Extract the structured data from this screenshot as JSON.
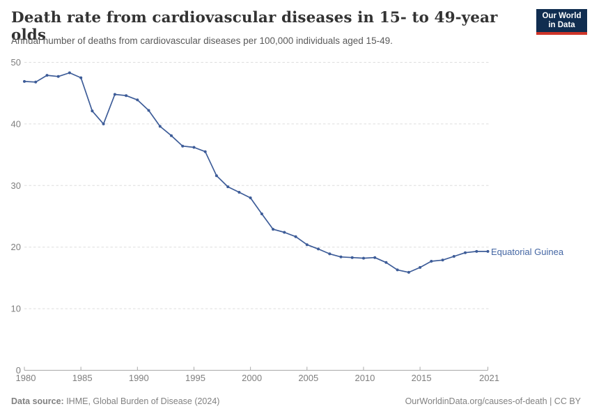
{
  "header": {
    "title": "Death rate from cardiovascular diseases in 15- to 49-year olds",
    "subtitle": "Annual number of deaths from cardiovascular diseases per 100,000 individuals aged 15-49.",
    "logo": {
      "line1": "Our World",
      "line2": "in Data"
    }
  },
  "chart_data": {
    "type": "line",
    "title": "Death rate from cardiovascular diseases in 15- to 49-year olds",
    "subtitle": "Annual number of deaths from cardiovascular diseases per 100,000 individuals aged 15-49.",
    "x": [
      1980,
      1981,
      1982,
      1983,
      1984,
      1985,
      1986,
      1987,
      1988,
      1989,
      1990,
      1991,
      1992,
      1993,
      1994,
      1995,
      1996,
      1997,
      1998,
      1999,
      2000,
      2001,
      2002,
      2003,
      2004,
      2005,
      2006,
      2007,
      2008,
      2009,
      2010,
      2011,
      2012,
      2013,
      2014,
      2015,
      2016,
      2017,
      2018,
      2019,
      2020,
      2021
    ],
    "series": [
      {
        "name": "Equatorial Guinea",
        "color": "#3d5c98",
        "values": [
          46.9,
          46.8,
          47.9,
          47.7,
          48.3,
          47.5,
          42.1,
          40.0,
          44.8,
          44.6,
          43.9,
          42.2,
          39.6,
          38.1,
          36.4,
          36.2,
          35.5,
          31.6,
          29.8,
          28.9,
          28.0,
          25.4,
          22.9,
          22.4,
          21.7,
          20.4,
          19.7,
          18.9,
          18.4,
          18.3,
          18.2,
          18.3,
          17.5,
          16.3,
          15.9,
          16.7,
          17.7,
          17.9,
          18.5,
          19.1,
          19.3,
          19.3
        ]
      }
    ],
    "xlabel": "",
    "ylabel": "",
    "ylim": [
      0,
      50
    ],
    "xlim": [
      1980,
      2021
    ],
    "yticks": [
      0,
      10,
      20,
      30,
      40,
      50
    ],
    "xticks": [
      1980,
      1985,
      1990,
      1995,
      2000,
      2005,
      2010,
      2015,
      2021
    ],
    "grid": "horizontal-dashed",
    "legend_position": "line-end-label"
  },
  "footer": {
    "source_label": "Data source:",
    "source_value": " IHME, Global Burden of Disease (2024)",
    "credit": "OurWorldinData.org/causes-of-death | CC BY"
  },
  "colors": {
    "line": "#3d5c98",
    "entity_label": "#4466a3",
    "gridline": "#dedede",
    "axis": "#a8a8a8",
    "tick_label": "#7e7e7e",
    "logo_bg": "#102d50",
    "logo_bar": "#cf3529"
  }
}
